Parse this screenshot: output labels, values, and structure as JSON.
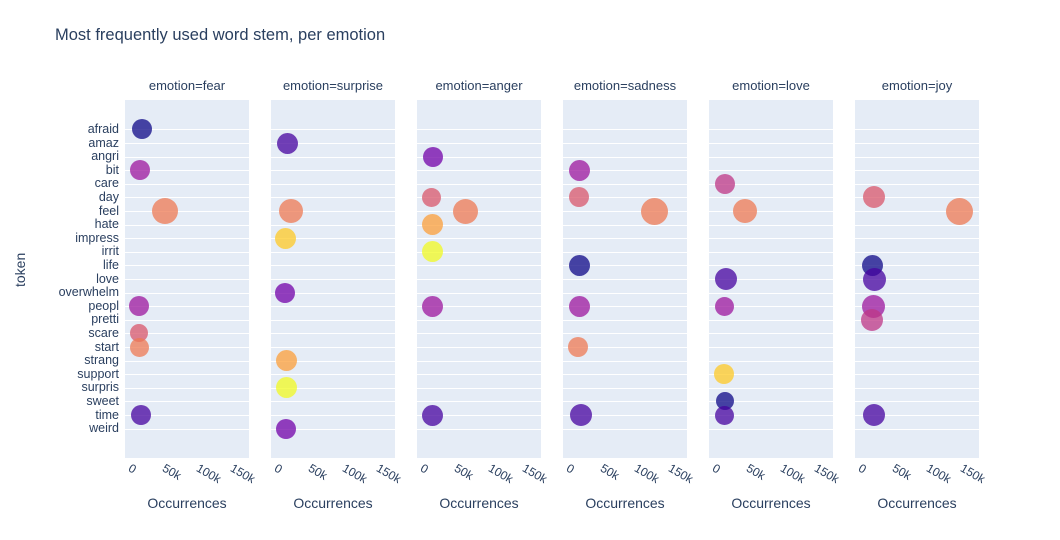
{
  "chart_data": {
    "type": "scatter",
    "title": "Most frequently used word stem, per emotion",
    "xlabel": "Occurrences",
    "ylabel": "token",
    "x_ticks": [
      "0",
      "50k",
      "100k",
      "150k"
    ],
    "x_tick_values": [
      0,
      50000,
      100000,
      150000
    ],
    "xlim": [
      -17000,
      164000
    ],
    "grid": "horizontal-only",
    "legend": "none",
    "y_categories": [
      "afraid",
      "amaz",
      "angri",
      "bit",
      "care",
      "day",
      "feel",
      "hate",
      "impress",
      "irrit",
      "life",
      "love",
      "overwhelm",
      "peopl",
      "pretti",
      "scare",
      "start",
      "strang",
      "support",
      "surpris",
      "sweet",
      "time",
      "weird"
    ],
    "facets": [
      {
        "emotion": "fear",
        "label": "emotion=fear",
        "points": [
          {
            "token": "afraid",
            "occurrences": 8000,
            "size": 20
          },
          {
            "token": "bit",
            "occurrences": 5000,
            "size": 20
          },
          {
            "token": "feel",
            "occurrences": 42000,
            "size": 26
          },
          {
            "token": "peopl",
            "occurrences": 4000,
            "size": 20
          },
          {
            "token": "scare",
            "occurrences": 4000,
            "size": 18
          },
          {
            "token": "start",
            "occurrences": 4000,
            "size": 19
          },
          {
            "token": "time",
            "occurrences": 6000,
            "size": 20
          }
        ]
      },
      {
        "emotion": "surprise",
        "label": "emotion=surprise",
        "points": [
          {
            "token": "amaz",
            "occurrences": 7000,
            "size": 21
          },
          {
            "token": "feel",
            "occurrences": 12000,
            "size": 24
          },
          {
            "token": "impress",
            "occurrences": 4000,
            "size": 21
          },
          {
            "token": "overwhelm",
            "occurrences": 4000,
            "size": 20
          },
          {
            "token": "strang",
            "occurrences": 5000,
            "size": 21
          },
          {
            "token": "surpris",
            "occurrences": 5000,
            "size": 21
          },
          {
            "token": "weird",
            "occurrences": 5000,
            "size": 20
          }
        ]
      },
      {
        "emotion": "anger",
        "label": "emotion=anger",
        "points": [
          {
            "token": "angri",
            "occurrences": 7000,
            "size": 20
          },
          {
            "token": "day",
            "occurrences": 4000,
            "size": 19
          },
          {
            "token": "feel",
            "occurrences": 54000,
            "size": 25
          },
          {
            "token": "hate",
            "occurrences": 5000,
            "size": 21
          },
          {
            "token": "irrit",
            "occurrences": 6000,
            "size": 21
          },
          {
            "token": "peopl",
            "occurrences": 5000,
            "size": 21
          },
          {
            "token": "time",
            "occurrences": 6000,
            "size": 21
          }
        ]
      },
      {
        "emotion": "sadness",
        "label": "emotion=sadness",
        "points": [
          {
            "token": "bit",
            "occurrences": 7000,
            "size": 21
          },
          {
            "token": "day",
            "occurrences": 7000,
            "size": 20
          },
          {
            "token": "feel",
            "occurrences": 117000,
            "size": 27
          },
          {
            "token": "life",
            "occurrences": 7000,
            "size": 21
          },
          {
            "token": "peopl",
            "occurrences": 7000,
            "size": 21
          },
          {
            "token": "start",
            "occurrences": 5000,
            "size": 20
          },
          {
            "token": "time",
            "occurrences": 9000,
            "size": 22
          }
        ]
      },
      {
        "emotion": "love",
        "label": "emotion=love",
        "points": [
          {
            "token": "care",
            "occurrences": 6000,
            "size": 20
          },
          {
            "token": "feel",
            "occurrences": 35000,
            "size": 24
          },
          {
            "token": "love",
            "occurrences": 8000,
            "size": 22
          },
          {
            "token": "peopl",
            "occurrences": 5000,
            "size": 19
          },
          {
            "token": "support",
            "occurrences": 5000,
            "size": 20
          },
          {
            "token": "sweet",
            "occurrences": 6000,
            "size": 18
          },
          {
            "token": "time",
            "occurrences": 6000,
            "size": 19
          }
        ]
      },
      {
        "emotion": "joy",
        "label": "emotion=joy",
        "points": [
          {
            "token": "day",
            "occurrences": 10000,
            "size": 22
          },
          {
            "token": "feel",
            "occurrences": 135000,
            "size": 27
          },
          {
            "token": "life",
            "occurrences": 9000,
            "size": 21
          },
          {
            "token": "love",
            "occurrences": 11000,
            "size": 23
          },
          {
            "token": "peopl",
            "occurrences": 10000,
            "size": 23
          },
          {
            "token": "pretti",
            "occurrences": 8000,
            "size": 22
          },
          {
            "token": "time",
            "occurrences": 10000,
            "size": 22
          }
        ]
      }
    ],
    "color_palette_plasma10": [
      "#0d0887",
      "#46039f",
      "#7201a8",
      "#9c179e",
      "#bd3786",
      "#d8576b",
      "#ed7953",
      "#fb9f3a",
      "#fdca26",
      "#f0f921"
    ],
    "marker_opacity": 0.75,
    "theme": {
      "text_color": "#2a3f5f",
      "plot_background": "#e5ecf6",
      "gridline_color": "#ffffff",
      "paper_background": "#ffffff"
    }
  }
}
